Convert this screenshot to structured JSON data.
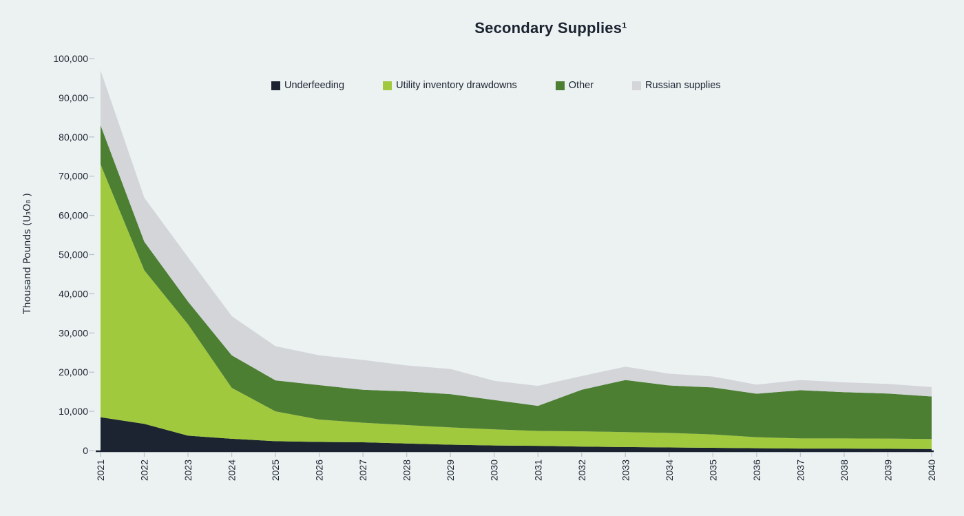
{
  "page": {
    "background": "#ecf1f2",
    "text_color": "#1b2430"
  },
  "chart_data": {
    "type": "area",
    "stacked": true,
    "title": "Secondary Supplies¹",
    "ylabel": "Thousand Pounds (U₃O₈ )",
    "xlabel": "",
    "grid": false,
    "legend_position": "top",
    "ylim": [
      0,
      100000
    ],
    "ytick_step": 10000,
    "ytick_labels": [
      "0",
      "10,000",
      "20,000",
      "30,000",
      "40,000",
      "50,000",
      "60,000",
      "70,000",
      "80,000",
      "90,000",
      "100,000"
    ],
    "x": [
      2021,
      2022,
      2023,
      2024,
      2025,
      2026,
      2027,
      2028,
      2029,
      2030,
      2031,
      2032,
      2033,
      2034,
      2035,
      2036,
      2037,
      2038,
      2039,
      2040
    ],
    "series": [
      {
        "name": "Underfeeding",
        "color": "#1b2430",
        "values": [
          8500,
          6800,
          3800,
          3000,
          2400,
          2200,
          2100,
          1800,
          1500,
          1300,
          1200,
          1000,
          900,
          800,
          700,
          600,
          500,
          500,
          450,
          400
        ]
      },
      {
        "name": "Utility inventory drawdowns",
        "color": "#a0c93e",
        "values": [
          64500,
          39200,
          28400,
          13000,
          7600,
          5700,
          5000,
          4700,
          4400,
          4100,
          3800,
          3900,
          3800,
          3700,
          3400,
          2800,
          2600,
          2600,
          2600,
          2550
        ]
      },
      {
        "name": "Other",
        "color": "#4d7f33",
        "values": [
          10000,
          7300,
          5800,
          8300,
          7900,
          8800,
          8400,
          8600,
          8500,
          7500,
          6400,
          10600,
          13300,
          12100,
          12000,
          11100,
          12300,
          11800,
          11500,
          10850
        ]
      },
      {
        "name": "Russian supplies",
        "color": "#d3d5d9",
        "values": [
          14000,
          11200,
          11300,
          10000,
          8700,
          7600,
          7600,
          6600,
          6400,
          4900,
          5100,
          3500,
          3400,
          3000,
          2800,
          2300,
          2600,
          2500,
          2450,
          2400
        ]
      }
    ],
    "axis": {
      "line_color": "#1b2430",
      "tick_color": "#b8c6cf"
    }
  }
}
